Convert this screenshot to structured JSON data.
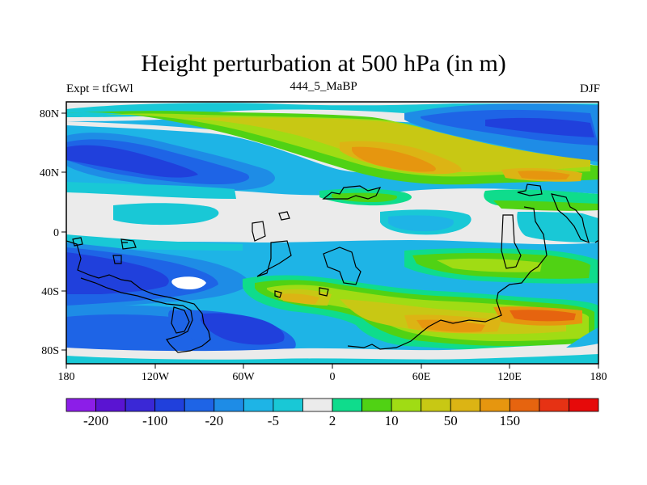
{
  "figure": {
    "title": "Height perturbation at 500 hPa (in m)",
    "left_string": "Expt = tfGWl",
    "center_string": "444_5_MaBP",
    "right_string": "DJF"
  },
  "axes": {
    "x_ticks": [
      "180",
      "120W",
      "60W",
      "0",
      "60E",
      "120E",
      "180"
    ],
    "y_ticks": [
      "80N",
      "40N",
      "0",
      "40S",
      "80S"
    ]
  },
  "colorbar": {
    "colors": [
      "#8c1ee8",
      "#5a14d2",
      "#3a28d6",
      "#2040dc",
      "#1e64e6",
      "#1e8ce6",
      "#1eb4e6",
      "#19c8d6",
      "#ebebeb",
      "#0fdc8c",
      "#50d214",
      "#a0dc14",
      "#c8c814",
      "#dcb414",
      "#e6960f",
      "#e6640f",
      "#e63214",
      "#e60a0a"
    ],
    "labels": [
      "-200",
      "-100",
      "-20",
      "-5",
      "2",
      "10",
      "50",
      "150"
    ]
  }
}
